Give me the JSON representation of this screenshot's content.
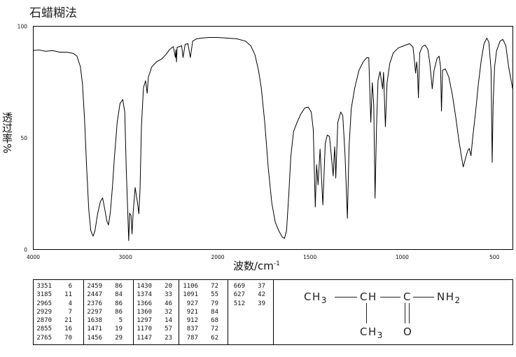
{
  "chart_data": {
    "type": "line",
    "title": "石蜡糊法",
    "xlabel": "波数/cm",
    "xlabel_exponent": "-1",
    "ylabel": "透过率%",
    "xlim": [
      4000,
      400
    ],
    "x_scale_break": 2000,
    "ylim": [
      0,
      100
    ],
    "xticks": [
      4000,
      3000,
      2000,
      1500,
      1000,
      500
    ],
    "yticks": [
      100,
      50,
      0
    ],
    "grid": false,
    "line_color": "#000000",
    "series": [
      {
        "points": [
          [
            4000,
            89.1
          ],
          [
            3940,
            89.4
          ],
          [
            3865,
            88.8
          ],
          [
            3789,
            89.1
          ],
          [
            3714,
            88.4
          ],
          [
            3639,
            88.4
          ],
          [
            3564,
            87.8
          ],
          [
            3526,
            86.6
          ],
          [
            3489,
            81.9
          ],
          [
            3466,
            74.1
          ],
          [
            3444,
            58.4
          ],
          [
            3421,
            36.6
          ],
          [
            3398,
            17.8
          ],
          [
            3376,
            8.4
          ],
          [
            3351,
            6
          ],
          [
            3331,
            8.4
          ],
          [
            3301,
            16.3
          ],
          [
            3271,
            21.6
          ],
          [
            3248,
            23.1
          ],
          [
            3226,
            18.4
          ],
          [
            3203,
            13
          ],
          [
            3185,
            11
          ],
          [
            3165,
            16.3
          ],
          [
            3143,
            27.2
          ],
          [
            3120,
            41.3
          ],
          [
            3090,
            56.9
          ],
          [
            3060,
            65.3
          ],
          [
            3030,
            67.2
          ],
          [
            3008,
            61.6
          ],
          [
            2992,
            36.6
          ],
          [
            2965,
            4
          ],
          [
            2955,
            16.3
          ],
          [
            2940,
            15.3
          ],
          [
            2929,
            7
          ],
          [
            2917,
            16.3
          ],
          [
            2895,
            27.8
          ],
          [
            2870,
            21
          ],
          [
            2855,
            16
          ],
          [
            2842,
            27.2
          ],
          [
            2827,
            55.3
          ],
          [
            2805,
            72.5
          ],
          [
            2782,
            75.6
          ],
          [
            2765,
            70
          ],
          [
            2752,
            77.2
          ],
          [
            2714,
            81.9
          ],
          [
            2662,
            84.1
          ],
          [
            2609,
            85.3
          ],
          [
            2564,
            87.2
          ],
          [
            2519,
            89.7
          ],
          [
            2481,
            90.9
          ],
          [
            2459,
            86
          ],
          [
            2453,
            89.5
          ],
          [
            2447,
            84
          ],
          [
            2440,
            90.6
          ],
          [
            2413,
            90.9
          ],
          [
            2391,
            91.3
          ],
          [
            2376,
            86
          ],
          [
            2353,
            91.9
          ],
          [
            2323,
            92.2
          ],
          [
            2297,
            86
          ],
          [
            2271,
            93.4
          ],
          [
            2226,
            94.4
          ],
          [
            2173,
            94.7
          ],
          [
            2098,
            95
          ],
          [
            2000,
            95
          ],
          [
            1954,
            94.7
          ],
          [
            1897,
            94.4
          ],
          [
            1851,
            93.4
          ],
          [
            1821,
            91.3
          ],
          [
            1798,
            87.2
          ],
          [
            1779,
            80.3
          ],
          [
            1764,
            72.5
          ],
          [
            1745,
            56.9
          ],
          [
            1726,
            36.6
          ],
          [
            1707,
            20.9
          ],
          [
            1688,
            12.2
          ],
          [
            1669,
            8.4
          ],
          [
            1650,
            5.6
          ],
          [
            1638,
            5
          ],
          [
            1627,
            8.4
          ],
          [
            1615,
            24.1
          ],
          [
            1604,
            41.3
          ],
          [
            1589,
            52.8
          ],
          [
            1570,
            56.9
          ],
          [
            1550,
            60.6
          ],
          [
            1528,
            63.4
          ],
          [
            1509,
            63.8
          ],
          [
            1493,
            61.6
          ],
          [
            1482,
            53.8
          ],
          [
            1471,
            19
          ],
          [
            1464,
            38
          ],
          [
            1456,
            29
          ],
          [
            1445,
            45
          ],
          [
            1430,
            20
          ],
          [
            1417,
            47.5
          ],
          [
            1406,
            51.3
          ],
          [
            1394,
            50.6
          ],
          [
            1374,
            33
          ],
          [
            1370,
            40
          ],
          [
            1366,
            46
          ],
          [
            1363,
            40
          ],
          [
            1360,
            32
          ],
          [
            1349,
            56.9
          ],
          [
            1333,
            61.6
          ],
          [
            1322,
            60
          ],
          [
            1310,
            42.8
          ],
          [
            1297,
            14
          ],
          [
            1288,
            46
          ],
          [
            1276,
            63.1
          ],
          [
            1257,
            72.5
          ],
          [
            1234,
            80.3
          ],
          [
            1211,
            84.1
          ],
          [
            1192,
            85.9
          ],
          [
            1181,
            85.9
          ],
          [
            1170,
            57
          ],
          [
            1162,
            74.7
          ],
          [
            1154,
            64.7
          ],
          [
            1147,
            23
          ],
          [
            1139,
            55.3
          ],
          [
            1131,
            75.6
          ],
          [
            1120,
            79.7
          ],
          [
            1106,
            72
          ],
          [
            1101,
            79.4
          ],
          [
            1091,
            55
          ],
          [
            1082,
            74.7
          ],
          [
            1067,
            83.4
          ],
          [
            1048,
            88.1
          ],
          [
            1021,
            90.3
          ],
          [
            990,
            91.3
          ],
          [
            960,
            92.2
          ],
          [
            941,
            90.6
          ],
          [
            927,
            79
          ],
          [
            924,
            82
          ],
          [
            921,
            84
          ],
          [
            917,
            80
          ],
          [
            912,
            68
          ],
          [
            905,
            88
          ],
          [
            891,
            90.9
          ],
          [
            876,
            91.6
          ],
          [
            861,
            89.7
          ],
          [
            850,
            83.4
          ],
          [
            837,
            72
          ],
          [
            827,
            80.3
          ],
          [
            811,
            85.6
          ],
          [
            800,
            86.6
          ],
          [
            792,
            81.9
          ],
          [
            787,
            62
          ],
          [
            781,
            80.3
          ],
          [
            766,
            80.9
          ],
          [
            747,
            77.2
          ],
          [
            728,
            69.4
          ],
          [
            709,
            59
          ],
          [
            693,
            49.1
          ],
          [
            678,
            41.3
          ],
          [
            669,
            37
          ],
          [
            655,
            41.3
          ],
          [
            644,
            44.4
          ],
          [
            636,
            45.3
          ],
          [
            627,
            42
          ],
          [
            617,
            50.6
          ],
          [
            602,
            61.6
          ],
          [
            587,
            74.1
          ],
          [
            571,
            85
          ],
          [
            556,
            92.2
          ],
          [
            541,
            94.7
          ],
          [
            530,
            92.8
          ],
          [
            518,
            80.3
          ],
          [
            512,
            39
          ],
          [
            507,
            64.7
          ],
          [
            499,
            81.9
          ],
          [
            488,
            89.1
          ],
          [
            469,
            93.4
          ],
          [
            454,
            94.1
          ],
          [
            438,
            91.3
          ],
          [
            423,
            81.9
          ],
          [
            400,
            71.6
          ]
        ]
      }
    ]
  },
  "peak_table": {
    "columns": [
      [
        [
          3351,
          6
        ],
        [
          3185,
          11
        ],
        [
          2965,
          4
        ],
        [
          2929,
          7
        ],
        [
          2870,
          21
        ],
        [
          2855,
          16
        ],
        [
          2765,
          70
        ]
      ],
      [
        [
          2459,
          86
        ],
        [
          2447,
          84
        ],
        [
          2376,
          86
        ],
        [
          2297,
          86
        ],
        [
          1638,
          5
        ],
        [
          1471,
          19
        ],
        [
          1456,
          29
        ]
      ],
      [
        [
          1430,
          20
        ],
        [
          1374,
          33
        ],
        [
          1366,
          46
        ],
        [
          1360,
          32
        ],
        [
          1297,
          14
        ],
        [
          1170,
          57
        ],
        [
          1147,
          23
        ]
      ],
      [
        [
          1106,
          72
        ],
        [
          1091,
          55
        ],
        [
          927,
          79
        ],
        [
          921,
          84
        ],
        [
          912,
          68
        ],
        [
          837,
          72
        ],
        [
          787,
          62
        ]
      ],
      [
        [
          669,
          37
        ],
        [
          627,
          42
        ],
        [
          512,
          39
        ]
      ]
    ]
  },
  "structure": {
    "chain": [
      {
        "atom": "CH",
        "sub": "3"
      },
      {
        "atom": "CH"
      },
      {
        "atom": "C"
      },
      {
        "atom": "NH",
        "sub": "2"
      }
    ],
    "branch": {
      "atom": "CH",
      "sub": "3"
    },
    "carbonyl_oxygen": {
      "atom": "O"
    }
  }
}
